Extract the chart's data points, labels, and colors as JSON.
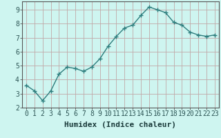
{
  "x": [
    0,
    1,
    2,
    3,
    4,
    5,
    6,
    7,
    8,
    9,
    10,
    11,
    12,
    13,
    14,
    15,
    16,
    17,
    18,
    19,
    20,
    21,
    22,
    23
  ],
  "y": [
    3.6,
    3.2,
    2.5,
    3.2,
    4.4,
    4.9,
    4.8,
    4.6,
    4.9,
    5.5,
    6.4,
    7.1,
    7.7,
    7.9,
    8.6,
    9.2,
    9.0,
    8.8,
    8.1,
    7.9,
    7.4,
    7.2,
    7.1,
    7.2
  ],
  "line_color": "#2d7d7d",
  "marker": "+",
  "marker_size": 4,
  "marker_color": "#2d7d7d",
  "bg_color": "#cef5f0",
  "plot_bg_color": "#cef5f0",
  "grid_color": "#c0a8a8",
  "xlabel": "Humidex (Indice chaleur)",
  "xlabel_fontsize": 8,
  "tick_label_fontsize": 7,
  "xlim": [
    -0.5,
    23.5
  ],
  "ylim": [
    2,
    9.6
  ],
  "yticks": [
    2,
    3,
    4,
    5,
    6,
    7,
    8,
    9
  ],
  "xticks": [
    0,
    1,
    2,
    3,
    4,
    5,
    6,
    7,
    8,
    9,
    10,
    11,
    12,
    13,
    14,
    15,
    16,
    17,
    18,
    19,
    20,
    21,
    22,
    23
  ],
  "spine_color": "#555555",
  "line_width": 1.0,
  "tick_color": "#2d5555",
  "label_color": "#1a3a3a"
}
